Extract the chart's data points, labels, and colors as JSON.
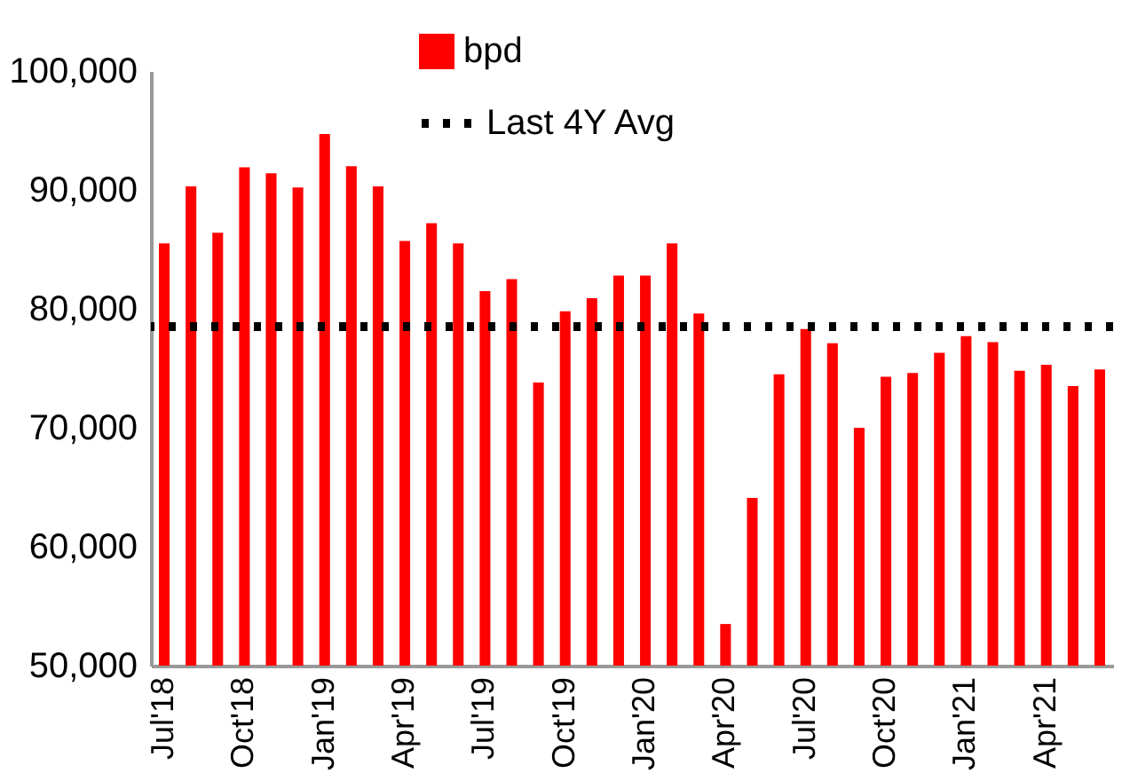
{
  "chart_data": {
    "type": "bar",
    "categories": [
      "Jul'18",
      null,
      null,
      "Oct'18",
      null,
      null,
      "Jan'19",
      null,
      null,
      "Apr'19",
      null,
      null,
      "Jul'19",
      null,
      null,
      "Oct'19",
      null,
      null,
      "Jan'20",
      null,
      null,
      "Apr'20",
      null,
      null,
      "Jul'20",
      null,
      null,
      "Oct'20",
      null,
      null,
      "Jan'21",
      null,
      null,
      "Apr'21",
      null,
      null
    ],
    "series": [
      {
        "name": "bpd",
        "color": "#ff0000",
        "values": [
          85500,
          90300,
          86400,
          91900,
          91400,
          90200,
          94700,
          92000,
          90300,
          85700,
          87200,
          85500,
          81500,
          82500,
          73800,
          79800,
          80900,
          82800,
          82800,
          85500,
          79600,
          53500,
          64100,
          74500,
          78300,
          77100,
          70000,
          74300,
          74600,
          76300,
          77700,
          77200,
          74800,
          75300,
          73500,
          74900
        ]
      }
    ],
    "ylim": [
      50000,
      100000
    ],
    "yticks": [
      {
        "value": 50000,
        "label": "50,000"
      },
      {
        "value": 60000,
        "label": "60,000"
      },
      {
        "value": 70000,
        "label": "70,000"
      },
      {
        "value": 80000,
        "label": "80,000"
      },
      {
        "value": 90000,
        "label": "90,000"
      },
      {
        "value": 100000,
        "label": "100,000"
      }
    ],
    "ref_lines": [
      {
        "axis": "y",
        "value": 78500,
        "label": "Last 4Y Avg",
        "color": "#000000",
        "line_style": "dotted"
      }
    ],
    "grid": false,
    "legend": "top"
  }
}
